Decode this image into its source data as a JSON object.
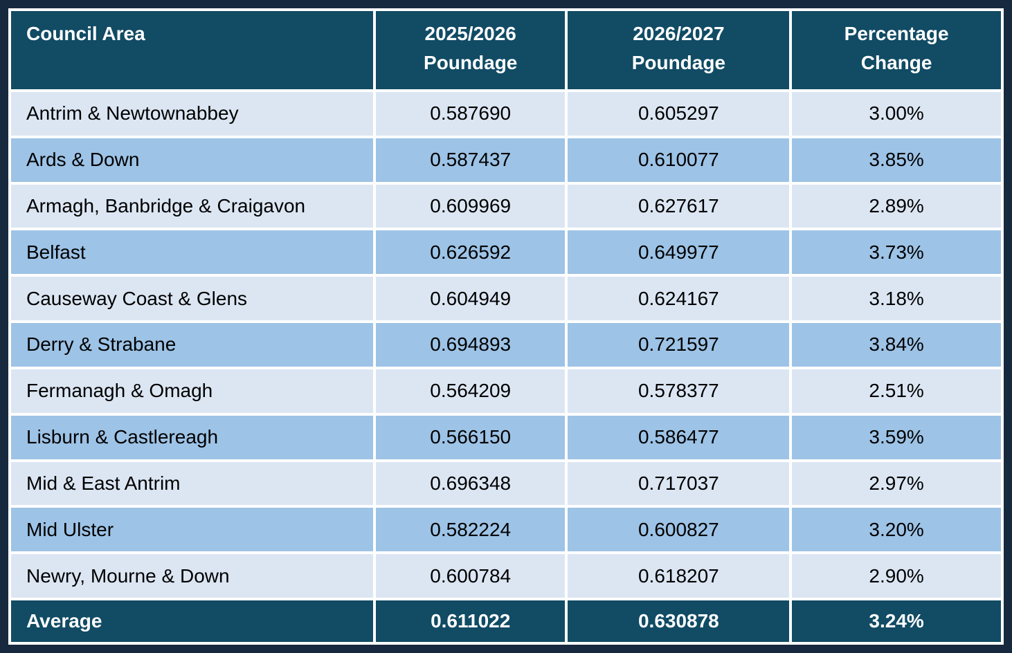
{
  "colors": {
    "frame_navy": "#16293E",
    "header_teal": "#114B64",
    "row_light": "#DCE6F3",
    "row_medium": "#9DC3E6",
    "gridline_white": "#FFFFFF",
    "header_text": "#FFFFFF",
    "body_text": "#000000"
  },
  "table": {
    "header": {
      "col1": "Council Area",
      "col2_line1": "2025/2026",
      "col2_line2": "Poundage",
      "col3_line1": "2026/2027",
      "col3_line2": "Poundage",
      "col4_line1": "Percentage",
      "col4_line2": "Change"
    },
    "rows": [
      {
        "council": "Antrim & Newtownabbey",
        "poundage_2025_2026": "0.587690",
        "poundage_2026_2027": "0.605297",
        "percentage_change": "3.00%"
      },
      {
        "council": "Ards & Down",
        "poundage_2025_2026": "0.587437",
        "poundage_2026_2027": "0.610077",
        "percentage_change": "3.85%"
      },
      {
        "council": "Armagh, Banbridge & Craigavon",
        "poundage_2025_2026": "0.609969",
        "poundage_2026_2027": "0.627617",
        "percentage_change": "2.89%"
      },
      {
        "council": "Belfast",
        "poundage_2025_2026": "0.626592",
        "poundage_2026_2027": "0.649977",
        "percentage_change": "3.73%"
      },
      {
        "council": "Causeway Coast & Glens",
        "poundage_2025_2026": "0.604949",
        "poundage_2026_2027": "0.624167",
        "percentage_change": "3.18%"
      },
      {
        "council": "Derry & Strabane",
        "poundage_2025_2026": "0.694893",
        "poundage_2026_2027": "0.721597",
        "percentage_change": "3.84%"
      },
      {
        "council": "Fermanagh & Omagh",
        "poundage_2025_2026": "0.564209",
        "poundage_2026_2027": "0.578377",
        "percentage_change": "2.51%"
      },
      {
        "council": "Lisburn & Castlereagh",
        "poundage_2025_2026": "0.566150",
        "poundage_2026_2027": "0.586477",
        "percentage_change": "3.59%"
      },
      {
        "council": "Mid & East Antrim",
        "poundage_2025_2026": "0.696348",
        "poundage_2026_2027": "0.717037",
        "percentage_change": "2.97%"
      },
      {
        "council": "Mid Ulster",
        "poundage_2025_2026": "0.582224",
        "poundage_2026_2027": "0.600827",
        "percentage_change": "3.20%"
      },
      {
        "council": "Newry, Mourne & Down",
        "poundage_2025_2026": "0.600784",
        "poundage_2026_2027": "0.618207",
        "percentage_change": "2.90%"
      }
    ],
    "footer": {
      "label": "Average",
      "poundage_2025_2026": "0.611022",
      "poundage_2026_2027": "0.630878",
      "percentage_change": "3.24%"
    }
  },
  "chart_data": {
    "type": "table",
    "columns": [
      "Council Area",
      "2025/2026 Poundage",
      "2026/2027 Poundage",
      "Percentage Change"
    ],
    "rows": [
      [
        "Antrim & Newtownabbey",
        0.58769,
        0.605297,
        "3.00%"
      ],
      [
        "Ards & Down",
        0.587437,
        0.610077,
        "3.85%"
      ],
      [
        "Armagh, Banbridge & Craigavon",
        0.609969,
        0.627617,
        "2.89%"
      ],
      [
        "Belfast",
        0.626592,
        0.649977,
        "3.73%"
      ],
      [
        "Causeway Coast & Glens",
        0.604949,
        0.624167,
        "3.18%"
      ],
      [
        "Derry & Strabane",
        0.694893,
        0.721597,
        "3.84%"
      ],
      [
        "Fermanagh & Omagh",
        0.564209,
        0.578377,
        "2.51%"
      ],
      [
        "Lisburn & Castlereagh",
        0.56615,
        0.586477,
        "3.59%"
      ],
      [
        "Mid & East Antrim",
        0.696348,
        0.717037,
        "2.97%"
      ],
      [
        "Mid Ulster",
        0.582224,
        0.600827,
        "3.20%"
      ],
      [
        "Newry, Mourne & Down",
        0.600784,
        0.618207,
        "2.90%"
      ],
      [
        "Average",
        0.611022,
        0.630878,
        "3.24%"
      ]
    ]
  }
}
